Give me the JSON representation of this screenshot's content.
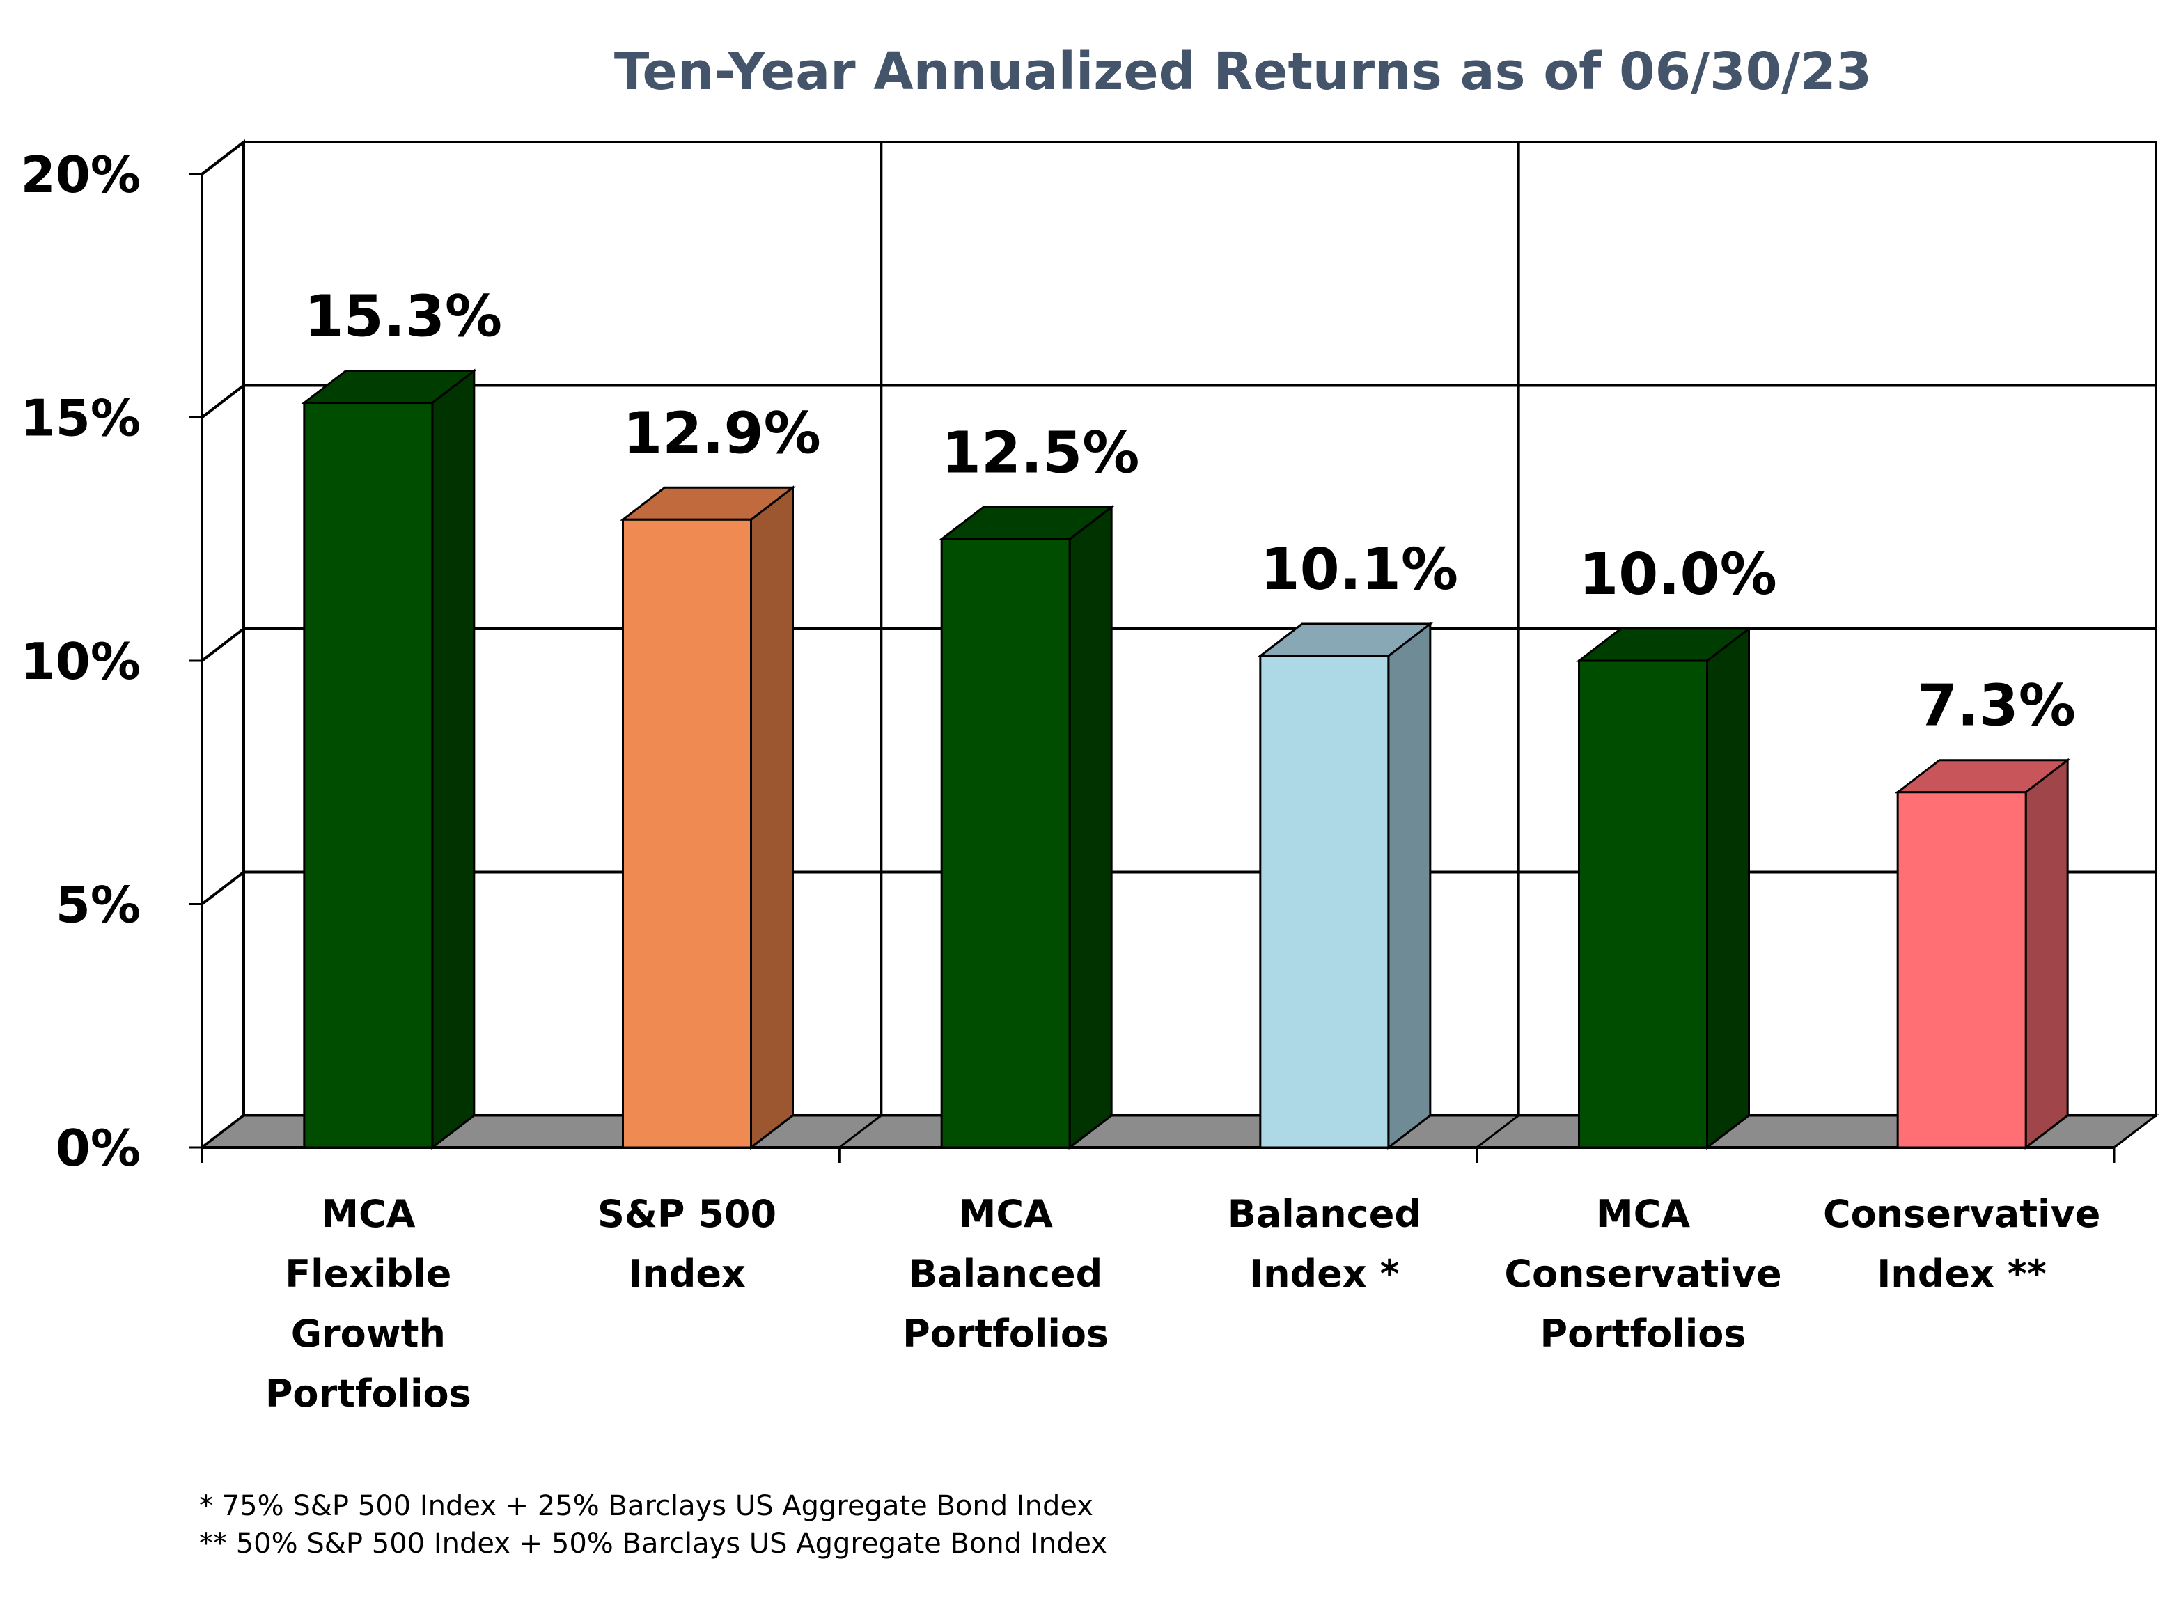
{
  "chart_data": {
    "type": "bar",
    "title": "Ten-Year Annualized Returns as of 06/30/23",
    "categories": [
      [
        "MCA",
        "Flexible",
        "Growth",
        "Portfolios"
      ],
      [
        "S&P 500",
        "Index"
      ],
      [
        "MCA",
        "Balanced",
        "Portfolios"
      ],
      [
        "Balanced",
        "Index *"
      ],
      [
        "MCA",
        "Conservative",
        "Portfolios"
      ],
      [
        "Conservative",
        "Index **"
      ]
    ],
    "values": [
      15.3,
      12.9,
      12.5,
      10.1,
      10.0,
      7.3
    ],
    "value_labels": [
      "15.3%",
      "12.9%",
      "12.5%",
      "10.1%",
      "10.0%",
      "7.3%"
    ],
    "bar_colors": [
      "#004d00",
      "#ef8b52",
      "#004d00",
      "#add8e6",
      "#004d00",
      "#ff6f73"
    ],
    "bar_side_colors": [
      "#003300",
      "#9c5630",
      "#003300",
      "#6e8b96",
      "#003300",
      "#a0464a"
    ],
    "bar_top_colors": [
      "#003d00",
      "#c06a3e",
      "#003d00",
      "#88a8b5",
      "#003d00",
      "#c7555a"
    ],
    "ylim": [
      0,
      20
    ],
    "ytick_labels": [
      "0%",
      "5%",
      "10%",
      "15%",
      "20%"
    ],
    "ytick_values": [
      0,
      5,
      10,
      15,
      20
    ],
    "xlabel": "",
    "ylabel": "",
    "grid": true,
    "legend": "none",
    "floor_color": "#8c8c8c",
    "footnotes": [
      "*   75% S&P 500 Index + 25% Barclays US Aggregate Bond Index",
      "** 50% S&P 500 Index + 50% Barclays US Aggregate Bond Index"
    ]
  }
}
